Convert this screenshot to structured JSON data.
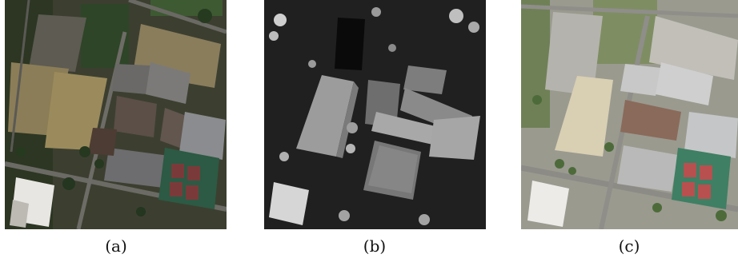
{
  "figure": {
    "panels": [
      {
        "caption": "(a)",
        "content": "aerial-image-true-color"
      },
      {
        "caption": "(b)",
        "content": "height-map-grayscale"
      },
      {
        "caption": "(c)",
        "content": "aerial-image-high-resolution"
      }
    ]
  }
}
